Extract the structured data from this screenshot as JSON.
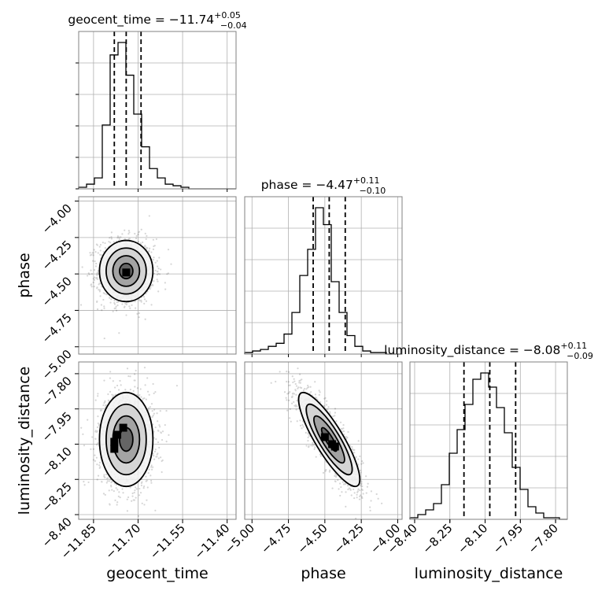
{
  "chart_data": {
    "type": "corner",
    "parameters": [
      {
        "name": "geocent_time",
        "title": "geocent_time = −11.74",
        "sup": "+0.05",
        "sub": "−0.04",
        "range": [
          -11.9,
          -11.37
        ],
        "ticks": [
          -11.85,
          -11.7,
          -11.55,
          -11.4
        ],
        "tick_labels": [
          "−11.85",
          "−11.70",
          "−11.55",
          "−11.40"
        ],
        "quantiles": [
          -11.78,
          -11.74,
          -11.69
        ],
        "hist": [
          0.01,
          0.03,
          0.07,
          0.41,
          0.86,
          0.94,
          0.73,
          0.48,
          0.27,
          0.13,
          0.07,
          0.03,
          0.02,
          0.01,
          0.0,
          0.0,
          0.0,
          0.0,
          0.0,
          0.0
        ]
      },
      {
        "name": "phase",
        "title": "phase = −4.47",
        "sup": "+0.11",
        "sub": "−0.10",
        "range": [
          -5.05,
          -3.97
        ],
        "ticks": [
          -5.0,
          -4.75,
          -4.5,
          -4.25,
          -4.0
        ],
        "tick_labels": [
          "−5.00",
          "−4.75",
          "−4.50",
          "−4.25",
          "−4.00"
        ],
        "quantiles": [
          -4.58,
          -4.47,
          -4.36
        ],
        "hist": [
          0.01,
          0.02,
          0.03,
          0.05,
          0.07,
          0.13,
          0.27,
          0.51,
          0.68,
          0.95,
          0.84,
          0.47,
          0.27,
          0.12,
          0.05,
          0.02,
          0.01,
          0.01,
          0.0,
          0.0
        ]
      },
      {
        "name": "luminosity_distance",
        "title": "luminosity_distance = −8.08",
        "sup": "+0.11",
        "sub": "−0.09",
        "range": [
          -8.42,
          -7.75
        ],
        "ticks": [
          -8.4,
          -8.25,
          -8.1,
          -7.95,
          -7.8
        ],
        "tick_labels": [
          "−8.40",
          "−8.25",
          "−8.10",
          "−7.95",
          "−7.80"
        ],
        "quantiles": [
          -8.19,
          -8.08,
          -7.97
        ],
        "hist": [
          0.01,
          0.03,
          0.06,
          0.1,
          0.22,
          0.42,
          0.57,
          0.73,
          0.89,
          0.93,
          0.84,
          0.71,
          0.55,
          0.33,
          0.19,
          0.08,
          0.04,
          0.01,
          0.01,
          0.0
        ]
      }
    ],
    "pairs": [
      {
        "x": "geocent_time",
        "y": "phase",
        "mean": [
          -11.74,
          -4.48
        ],
        "sigma": [
          0.045,
          0.105
        ],
        "rho": 0.0,
        "peak_cells": [
          [
            -11.74,
            -4.49
          ]
        ]
      },
      {
        "x": "geocent_time",
        "y": "luminosity_distance",
        "mean": [
          -11.74,
          -8.08
        ],
        "sigma": [
          0.045,
          0.1
        ],
        "rho": 0.0,
        "peak_cells": [
          [
            -11.78,
            -8.12
          ],
          [
            -11.77,
            -8.06
          ],
          [
            -11.75,
            -8.03
          ],
          [
            -11.78,
            -8.09
          ]
        ]
      },
      {
        "x": "phase",
        "y": "luminosity_distance",
        "mean": [
          -4.47,
          -8.08
        ],
        "sigma": [
          0.105,
          0.1
        ],
        "rho": -0.85,
        "peak_cells": [
          [
            -4.5,
            -8.07
          ],
          [
            -4.45,
            -8.1
          ],
          [
            -4.43,
            -8.11
          ]
        ]
      }
    ],
    "grid": true
  }
}
